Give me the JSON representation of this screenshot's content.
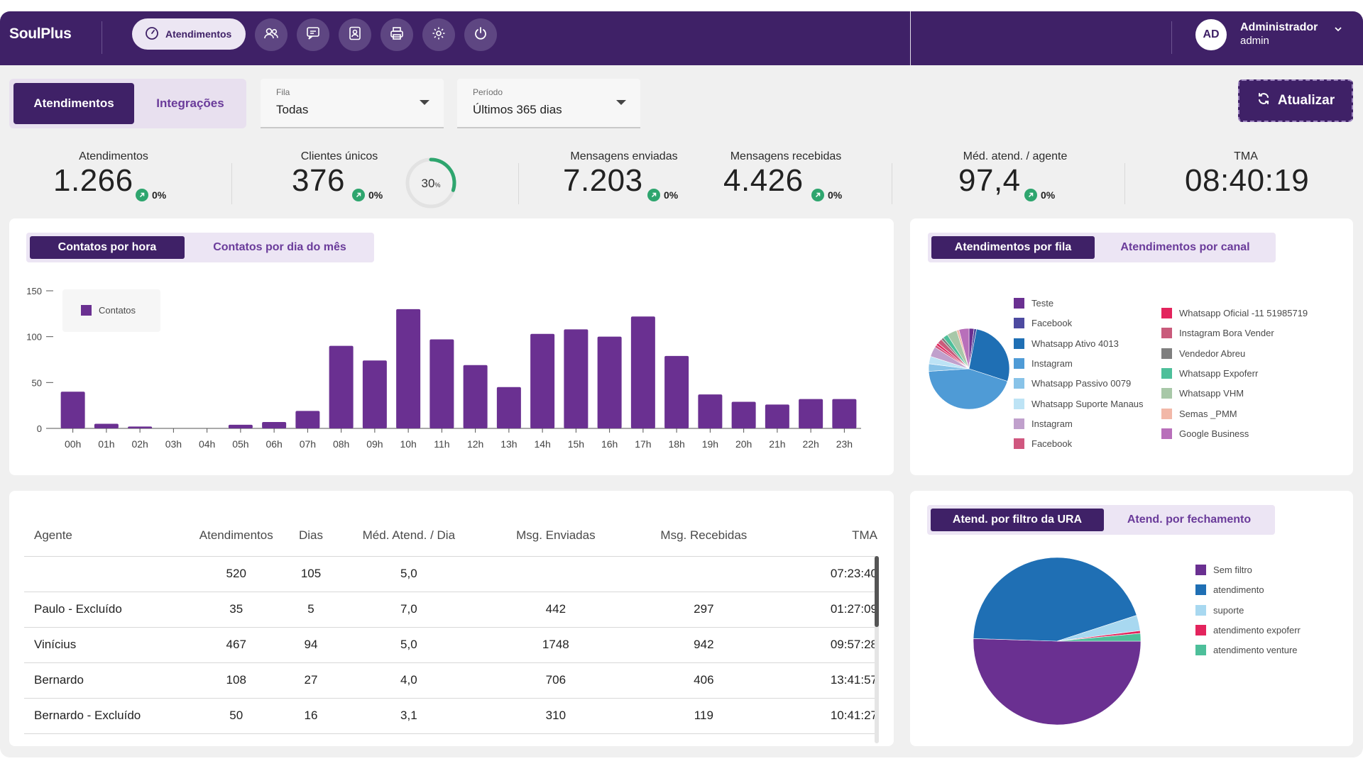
{
  "app": {
    "name": "SoulPlus"
  },
  "nav": {
    "main_label": "Atendimentos",
    "icons": [
      "users-icon",
      "chat-icon",
      "contacts-icon",
      "printer-icon",
      "gear-icon",
      "power-icon"
    ]
  },
  "user": {
    "initials": "AD",
    "name": "Administrador",
    "role": "admin"
  },
  "filters": {
    "tabs": [
      "Atendimentos",
      "Integrações"
    ],
    "active_tab": "Atendimentos",
    "fila": {
      "label": "Fila",
      "value": "Todas"
    },
    "periodo": {
      "label": "Período",
      "value": "Últimos 365 dias"
    },
    "refresh_label": "Atualizar"
  },
  "stats": {
    "atendimentos": {
      "label": "Atendimentos",
      "value": "1.266",
      "change": "0%"
    },
    "clientes": {
      "label": "Clientes únicos",
      "value": "376",
      "change": "0%",
      "ring_value": "30",
      "ring_unit": "%",
      "ring_fraction": 0.3
    },
    "enviadas": {
      "label": "Mensagens enviadas",
      "value": "7.203",
      "change": "0%"
    },
    "recebidas": {
      "label": "Mensagens recebidas",
      "value": "4.426",
      "change": "0%"
    },
    "med_agente": {
      "label": "Méd. atend. / agente",
      "value": "97,4",
      "change": "0%"
    },
    "tma": {
      "label": "TMA",
      "value": "08:40:19"
    }
  },
  "hour_chart": {
    "tabs": [
      "Contatos por hora",
      "Contatos por dia do mês"
    ],
    "legend": "Contatos",
    "color": "#6a3091"
  },
  "fila_chart": {
    "tabs": [
      "Atendimentos por fila",
      "Atendimentos por canal"
    ],
    "legend_left": [
      {
        "label": "Teste",
        "color": "#6a3091"
      },
      {
        "label": "Facebook",
        "color": "#4d4aa0"
      },
      {
        "label": "Whatsapp Ativo 4013",
        "color": "#1f6fb4"
      },
      {
        "label": "Instagram",
        "color": "#4f9bd6"
      },
      {
        "label": "Whatsapp Passivo 0079",
        "color": "#88c3e8"
      },
      {
        "label": "Whatsapp Suporte Manaus",
        "color": "#bde3f5"
      },
      {
        "label": "Instagram",
        "color": "#c0a0cc"
      },
      {
        "label": "Facebook",
        "color": "#d0577f"
      }
    ],
    "legend_right": [
      {
        "label": "Whatsapp Oficial -11 51985719",
        "color": "#e3245d"
      },
      {
        "label": "Instagram Bora Vender",
        "color": "#c95b7b"
      },
      {
        "label": "Vendedor Abreu",
        "color": "#7f7f7f"
      },
      {
        "label": "Whatsapp Expoferr",
        "color": "#4dbf9a"
      },
      {
        "label": "Whatsapp VHM",
        "color": "#a8c8a8"
      },
      {
        "label": "Semas _PMM",
        "color": "#f2b8a8"
      },
      {
        "label": "Google Business",
        "color": "#b86fba"
      }
    ]
  },
  "ura_chart": {
    "tabs": [
      "Atend. por filtro da URA",
      "Atend. por fechamento"
    ],
    "legend": [
      {
        "label": "Sem filtro",
        "color": "#6a3091"
      },
      {
        "label": "atendimento",
        "color": "#1f6fb4"
      },
      {
        "label": "suporte",
        "color": "#a8d8f0"
      },
      {
        "label": "atendimento expoferr",
        "color": "#e3245d"
      },
      {
        "label": "atendimento venture",
        "color": "#4dbf9a"
      }
    ]
  },
  "chart_data": [
    {
      "type": "bar",
      "title": "Contatos por hora",
      "categories": [
        "00h",
        "01h",
        "02h",
        "03h",
        "04h",
        "05h",
        "06h",
        "07h",
        "08h",
        "09h",
        "10h",
        "11h",
        "12h",
        "13h",
        "14h",
        "15h",
        "16h",
        "17h",
        "18h",
        "19h",
        "20h",
        "21h",
        "22h",
        "23h"
      ],
      "series": [
        {
          "name": "Contatos",
          "values": [
            40,
            5,
            2,
            0,
            0,
            4,
            7,
            19,
            90,
            74,
            130,
            97,
            69,
            45,
            103,
            108,
            100,
            122,
            79,
            37,
            29,
            26,
            32,
            32
          ]
        }
      ],
      "yticks": [
        0,
        50,
        100,
        150
      ],
      "ylim": [
        0,
        150
      ],
      "legend_position": "top-left",
      "grid": false
    },
    {
      "type": "pie",
      "title": "Atendimentos por fila",
      "labels": [
        "Teste",
        "Facebook",
        "Whatsapp Ativo 4013",
        "Instagram",
        "Whatsapp Passivo 0079",
        "Whatsapp Suporte Manaus",
        "Instagram",
        "Facebook",
        "Whatsapp Oficial -11 51985719",
        "Instagram Bora Vender",
        "Vendedor Abreu",
        "Whatsapp Expoferr",
        "Whatsapp VHM",
        "Semas _PMM",
        "Google Business"
      ],
      "values": [
        2,
        1,
        27,
        44,
        3,
        3,
        4,
        1,
        1,
        2,
        1,
        2,
        4,
        1,
        4
      ]
    },
    {
      "type": "pie",
      "title": "Atend. por filtro da URA",
      "labels": [
        "Sem filtro",
        "atendimento",
        "suporte",
        "atendimento expoferr",
        "atendimento venture"
      ],
      "values": [
        50.5,
        44.5,
        3,
        0.5,
        1.5
      ]
    }
  ],
  "table": {
    "headers": [
      "Agente",
      "Atendimentos",
      "Dias",
      "Méd. Atend. / Dia",
      "Msg. Enviadas",
      "Msg. Recebidas",
      "TMA"
    ],
    "rows": [
      [
        "",
        "520",
        "105",
        "5,0",
        "",
        "",
        "07:23:40"
      ],
      [
        "Paulo - Excluído",
        "35",
        "5",
        "7,0",
        "442",
        "297",
        "01:27:09"
      ],
      [
        "Vinícius",
        "467",
        "94",
        "5,0",
        "1748",
        "942",
        "09:57:28"
      ],
      [
        "Bernardo",
        "108",
        "27",
        "4,0",
        "706",
        "406",
        "13:41:57"
      ],
      [
        "Bernardo - Excluído",
        "50",
        "16",
        "3,1",
        "310",
        "119",
        "10:41:27"
      ]
    ]
  }
}
